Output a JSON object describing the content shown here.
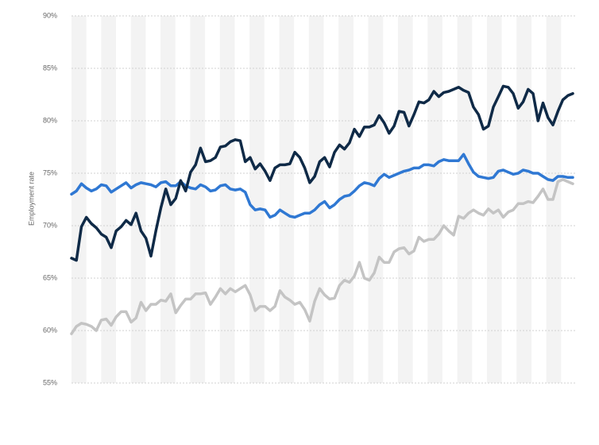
{
  "chart_data": {
    "type": "line",
    "y_label": "Employment rate",
    "categories": [
      null,
      null,
      null,
      null,
      null,
      null,
      null,
      null,
      null,
      null,
      null,
      null,
      null,
      null,
      null,
      null,
      null,
      null,
      null,
      null,
      null,
      null,
      null,
      null,
      null,
      null,
      null,
      null,
      null,
      null,
      null,
      null,
      null,
      null,
      null,
      null,
      null,
      null,
      null,
      null,
      null,
      null,
      null,
      null,
      null,
      null,
      null,
      null,
      null,
      null,
      null,
      null,
      null,
      null,
      null,
      null,
      null,
      null,
      null,
      null,
      null,
      null,
      null,
      null,
      null,
      null,
      null,
      null,
      null,
      null,
      null,
      null,
      null,
      null,
      null,
      null,
      null,
      null,
      null,
      null,
      null,
      null,
      null,
      null,
      null,
      null,
      null,
      null,
      null,
      null,
      null,
      null,
      null,
      null,
      null,
      null,
      null,
      null,
      null,
      null,
      null,
      null
    ],
    "series": [
      {
        "color": "#0f2a47",
        "values": [
          66.9,
          66.7,
          69.9,
          70.8,
          70.2,
          69.8,
          69.2,
          68.9,
          67.9,
          69.5,
          69.9,
          70.5,
          70.1,
          71.2,
          69.5,
          68.8,
          67.1,
          69.5,
          71.7,
          73.5,
          72.0,
          72.6,
          74.3,
          73.3,
          75.1,
          75.8,
          77.4,
          76.1,
          76.2,
          76.5,
          77.5,
          77.6,
          78.0,
          78.2,
          78.1,
          76.1,
          76.5,
          75.4,
          75.9,
          75.2,
          74.3,
          75.5,
          75.8,
          75.8,
          75.9,
          77.0,
          76.5,
          75.5,
          74.1,
          74.7,
          76.1,
          76.5,
          75.6,
          77.0,
          77.7,
          77.3,
          77.9,
          79.2,
          78.5,
          79.4,
          79.4,
          79.6,
          80.5,
          79.8,
          78.8,
          79.5,
          80.9,
          80.8,
          79.5,
          80.6,
          81.8,
          81.7,
          82.0,
          82.8,
          82.3,
          82.7,
          82.8,
          83.0,
          83.2,
          82.9,
          82.7,
          81.3,
          80.6,
          79.2,
          79.5,
          81.3,
          82.3,
          83.3,
          83.2,
          82.6,
          81.2,
          81.8,
          83.0,
          82.6,
          80.0,
          81.7,
          80.3,
          79.6,
          80.9,
          82.0,
          82.4,
          82.6
        ]
      },
      {
        "color": "#2f78d3",
        "values": [
          73.0,
          73.3,
          74.0,
          73.6,
          73.3,
          73.5,
          73.9,
          73.8,
          73.2,
          73.5,
          73.8,
          74.1,
          73.6,
          73.9,
          74.1,
          74.0,
          73.9,
          73.7,
          74.1,
          74.2,
          73.8,
          73.8,
          74.2,
          73.8,
          73.6,
          73.5,
          73.9,
          73.7,
          73.3,
          73.4,
          73.8,
          73.9,
          73.5,
          73.4,
          73.5,
          73.2,
          72.0,
          71.5,
          71.6,
          71.5,
          70.8,
          71.0,
          71.5,
          71.2,
          70.9,
          70.8,
          71.0,
          71.2,
          71.2,
          71.5,
          72.0,
          72.3,
          71.7,
          72.0,
          72.5,
          72.8,
          72.9,
          73.3,
          73.8,
          74.1,
          74.0,
          73.8,
          74.5,
          74.9,
          74.6,
          74.8,
          75.0,
          75.2,
          75.3,
          75.5,
          75.5,
          75.8,
          75.8,
          75.7,
          76.1,
          76.3,
          76.2,
          76.2,
          76.2,
          76.8,
          75.9,
          75.1,
          74.7,
          74.6,
          74.5,
          74.6,
          75.2,
          75.3,
          75.1,
          74.9,
          75.0,
          75.3,
          75.2,
          75.0,
          75.0,
          74.7,
          74.4,
          74.3,
          74.7,
          74.7,
          74.6,
          74.6
        ]
      },
      {
        "color": "#c4c4c4",
        "values": [
          59.7,
          60.4,
          60.7,
          60.6,
          60.4,
          60.0,
          61.0,
          61.1,
          60.5,
          61.3,
          61.8,
          61.8,
          60.8,
          61.2,
          62.7,
          61.9,
          62.5,
          62.5,
          62.9,
          62.8,
          63.5,
          61.7,
          62.4,
          63.0,
          63.0,
          63.5,
          63.5,
          63.6,
          62.5,
          63.2,
          64.0,
          63.5,
          64.0,
          63.7,
          64.0,
          64.3,
          63.4,
          61.9,
          62.3,
          62.3,
          61.9,
          62.3,
          63.8,
          63.2,
          62.9,
          62.5,
          62.7,
          62.0,
          60.9,
          62.8,
          64.0,
          63.4,
          63.0,
          63.1,
          64.3,
          64.8,
          64.6,
          65.2,
          66.5,
          65.0,
          64.8,
          65.5,
          67.0,
          66.5,
          66.5,
          67.5,
          67.8,
          67.9,
          67.3,
          67.6,
          68.9,
          68.5,
          68.7,
          68.7,
          69.2,
          70.0,
          69.5,
          69.1,
          70.9,
          70.7,
          71.2,
          71.5,
          71.2,
          71.0,
          71.6,
          71.2,
          71.5,
          70.8,
          71.3,
          71.5,
          72.1,
          72.1,
          72.3,
          72.2,
          72.8,
          73.5,
          72.5,
          72.5,
          74.2,
          74.4,
          74.2,
          74.0
        ]
      }
    ],
    "ylim": [
      55,
      90
    ],
    "yticks": [
      {
        "value": 55,
        "label": "55%"
      },
      {
        "value": 60,
        "label": "60%"
      },
      {
        "value": 65,
        "label": "65%"
      },
      {
        "value": 70,
        "label": "70%"
      },
      {
        "value": 75,
        "label": "75%"
      },
      {
        "value": 80,
        "label": "80%"
      },
      {
        "value": 85,
        "label": "85%"
      },
      {
        "value": 90,
        "label": "90%"
      }
    ],
    "grid": true
  }
}
